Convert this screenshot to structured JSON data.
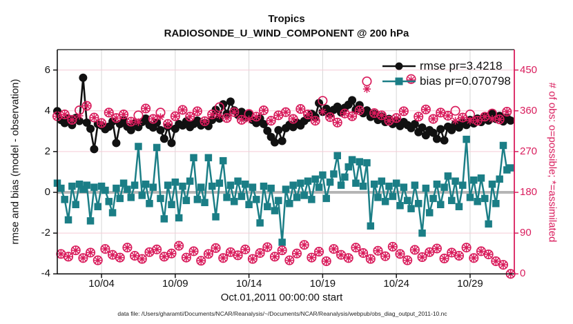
{
  "header": {
    "title": "Tropics",
    "subtitle": "RADIOSONDE_U_WIND_COMPONENT @ 200 hPa"
  },
  "colors": {
    "rmse": "#111111",
    "bias": "#1b7e86",
    "obs_pink": "#d91c5c",
    "grid_h_pink": "#f5ccd6",
    "grid_v_gray": "#d6d6d6",
    "zero_line_gray": "#b5b5b5"
  },
  "legend": {
    "rmse_label": "rmse pr=3.4218",
    "bias_label": "bias pr=0.070798"
  },
  "axes": {
    "ylabel_left": "rmse and bias (model - observation)",
    "ylabel_right": "# of obs: o=possible; *=assimilated",
    "xlabel": "Oct.01,2011 00:00:00 start"
  },
  "caption": "data file: /Users/gharamti/Documents/NCAR/Reanalysis/~/Documents/NCAR/Reanalysis/webpub/obs_diag_output_2011-10.nc",
  "chart_data": {
    "type": "line",
    "title": "Tropics",
    "subtitle": "RADIOSONDE_U_WIND_COMPONENT @ 200 hPa",
    "xlabel": "Oct.01,2011 00:00:00 start",
    "ylabel_left": "rmse and bias (model - observation)",
    "ylabel_right": "# of obs: o=possible; *=assimilated",
    "grid": true,
    "legend_position": "top-right-inside",
    "x_start_day": 1,
    "x_step_days": 0.25,
    "xlim": [
      1,
      32
    ],
    "x_tick_days": [
      4,
      9,
      14,
      19,
      24,
      29
    ],
    "x_tick_labels": [
      "10/04",
      "10/09",
      "10/14",
      "10/19",
      "10/24",
      "10/29"
    ],
    "ylim_left": [
      -4,
      7
    ],
    "yticks_left": [
      -4,
      -2,
      0,
      2,
      4,
      6
    ],
    "ylim_right": [
      0,
      495
    ],
    "yticks_right": [
      0,
      90,
      180,
      270,
      360,
      450
    ],
    "series": [
      {
        "name": "rmse",
        "axis": "left",
        "marker": "filled-circle",
        "line": true,
        "stat_label": "rmse pr=3.4218",
        "values": [
          3.98,
          3.55,
          3.4,
          3.62,
          3.3,
          3.65,
          3.5,
          5.62,
          3.42,
          3.12,
          2.12,
          3.35,
          3.28,
          3.1,
          3.22,
          3.48,
          2.42,
          3.35,
          3.52,
          3.22,
          3.05,
          3.38,
          3.2,
          3.45,
          3.62,
          3.3,
          3.18,
          3.42,
          3.05,
          2.63,
          3.22,
          2.42,
          3.12,
          3.35,
          3.28,
          3.48,
          3.2,
          3.35,
          3.52,
          3.28,
          3.4,
          3.25,
          3.55,
          4.05,
          3.62,
          4.32,
          3.85,
          4.45,
          4.02,
          3.8,
          3.95,
          3.7,
          3.82,
          3.55,
          3.4,
          3.62,
          3.35,
          3.02,
          2.72,
          2.45,
          3.05,
          2.52,
          3.15,
          3.32,
          3.2,
          3.42,
          3.28,
          3.5,
          3.65,
          3.85,
          3.7,
          4.38,
          3.95,
          4.1,
          3.85,
          4.05,
          4.2,
          3.92,
          4.15,
          4.3,
          4.52,
          4.05,
          4.28,
          3.88,
          4.02,
          3.7,
          3.85,
          3.55,
          3.72,
          3.45,
          3.6,
          3.35,
          3.52,
          3.25,
          3.45,
          3.3,
          3.15,
          3.35,
          2.95,
          3.18,
          2.8,
          3.05,
          2.92,
          2.62,
          3.1,
          2.55,
          3.22,
          3.05,
          3.35,
          3.18,
          3.45,
          3.3,
          3.55,
          3.38,
          3.62,
          3.45,
          3.7,
          3.52,
          3.85,
          3.6,
          3.75,
          3.48,
          3.65,
          3.52
        ]
      },
      {
        "name": "bias",
        "axis": "left",
        "marker": "filled-square",
        "line": true,
        "stat_label": "bias pr=0.070798",
        "values": [
          0.45,
          0.2,
          -0.35,
          -1.35,
          0.3,
          -0.6,
          0.4,
          0.15,
          0.35,
          -1.4,
          0.25,
          -0.7,
          0.3,
          0.1,
          -0.45,
          -1.0,
          0.2,
          -0.3,
          0.45,
          0.15,
          -0.25,
          0.35,
          2.25,
          -0.15,
          0.4,
          -0.55,
          0.25,
          2.2,
          -0.3,
          -1.3,
          0.35,
          -0.6,
          0.5,
          -1.25,
          0.3,
          -0.4,
          0.55,
          1.7,
          -0.35,
          0.25,
          -0.5,
          1.7,
          0.3,
          -1.2,
          0.45,
          1.55,
          -0.25,
          0.35,
          -0.45,
          0.55,
          -0.2,
          0.4,
          -0.6,
          0.25,
          -0.35,
          -1.5,
          0.3,
          -0.7,
          0.2,
          -0.9,
          -0.4,
          -2.45,
          0.15,
          -0.55,
          0.35,
          -0.25,
          0.45,
          -0.15,
          0.55,
          -0.35,
          0.65,
          0.25,
          0.85,
          -0.3,
          0.5,
          0.9,
          1.8,
          0.35,
          0.75,
          1.25,
          1.6,
          0.45,
          1.5,
          0.3,
          1.45,
          -1.65,
          0.4,
          -0.25,
          0.55,
          -0.45,
          0.3,
          -0.2,
          0.45,
          -0.65,
          0.25,
          -0.4,
          -0.8,
          0.35,
          -0.55,
          -2.0,
          0.2,
          -1.0,
          -0.3,
          0.4,
          -0.6,
          0.25,
          0.8,
          -0.4,
          0.55,
          -0.7,
          0.35,
          2.6,
          -0.25,
          0.6,
          -0.45,
          0.7,
          -0.3,
          -1.55,
          0.4,
          -0.55,
          0.65,
          2.3,
          1.1,
          1.2
        ]
      },
      {
        "name": "obs_possible",
        "axis": "right",
        "marker": "open-circle",
        "line": false,
        "values": [
          348,
          44,
          352,
          38,
          340,
          52,
          361,
          35,
          371,
          47,
          345,
          30,
          333,
          55,
          356,
          42,
          344,
          36,
          352,
          58,
          336,
          40,
          350,
          33,
          365,
          48,
          342,
          54,
          356,
          38,
          331,
          45,
          348,
          62,
          362,
          36,
          347,
          50,
          359,
          29,
          337,
          44,
          352,
          57,
          368,
          35,
          344,
          48,
          357,
          41,
          340,
          54,
          353,
          33,
          347,
          46,
          361,
          59,
          338,
          38,
          350,
          52,
          357,
          30,
          342,
          45,
          364,
          64,
          352,
          36,
          338,
          49,
          382,
          28,
          346,
          55,
          334,
          42,
          354,
          35,
          348,
          58,
          361,
          46,
          425,
          33,
          355,
          51,
          350,
          39,
          338,
          60,
          344,
          44,
          359,
          30,
          430,
          53,
          347,
          37,
          363,
          48,
          342,
          56,
          356,
          34,
          349,
          47,
          360,
          40,
          345,
          58,
          352,
          35,
          338,
          50,
          347,
          43,
          354,
          28,
          341,
          20,
          358,
          0
        ]
      },
      {
        "name": "obs_assimilated",
        "axis": "right",
        "marker": "asterisk",
        "line": false,
        "values": [
          348,
          44,
          352,
          38,
          340,
          52,
          349,
          35,
          371,
          47,
          345,
          30,
          333,
          55,
          356,
          42,
          344,
          36,
          352,
          58,
          336,
          40,
          335,
          33,
          365,
          48,
          342,
          54,
          346,
          38,
          331,
          45,
          348,
          62,
          362,
          36,
          347,
          50,
          359,
          29,
          337,
          44,
          352,
          57,
          350,
          35,
          344,
          48,
          357,
          41,
          340,
          54,
          341,
          33,
          347,
          46,
          361,
          59,
          338,
          38,
          350,
          52,
          357,
          30,
          342,
          45,
          364,
          64,
          352,
          36,
          338,
          49,
          358,
          28,
          346,
          55,
          334,
          42,
          354,
          35,
          348,
          58,
          361,
          46,
          408,
          33,
          355,
          51,
          350,
          39,
          338,
          60,
          344,
          44,
          359,
          30,
          428,
          53,
          347,
          37,
          363,
          48,
          342,
          56,
          356,
          34,
          349,
          47,
          338,
          40,
          345,
          58,
          338,
          35,
          338,
          50,
          347,
          43,
          342,
          28,
          341,
          20,
          358,
          0
        ]
      }
    ]
  }
}
